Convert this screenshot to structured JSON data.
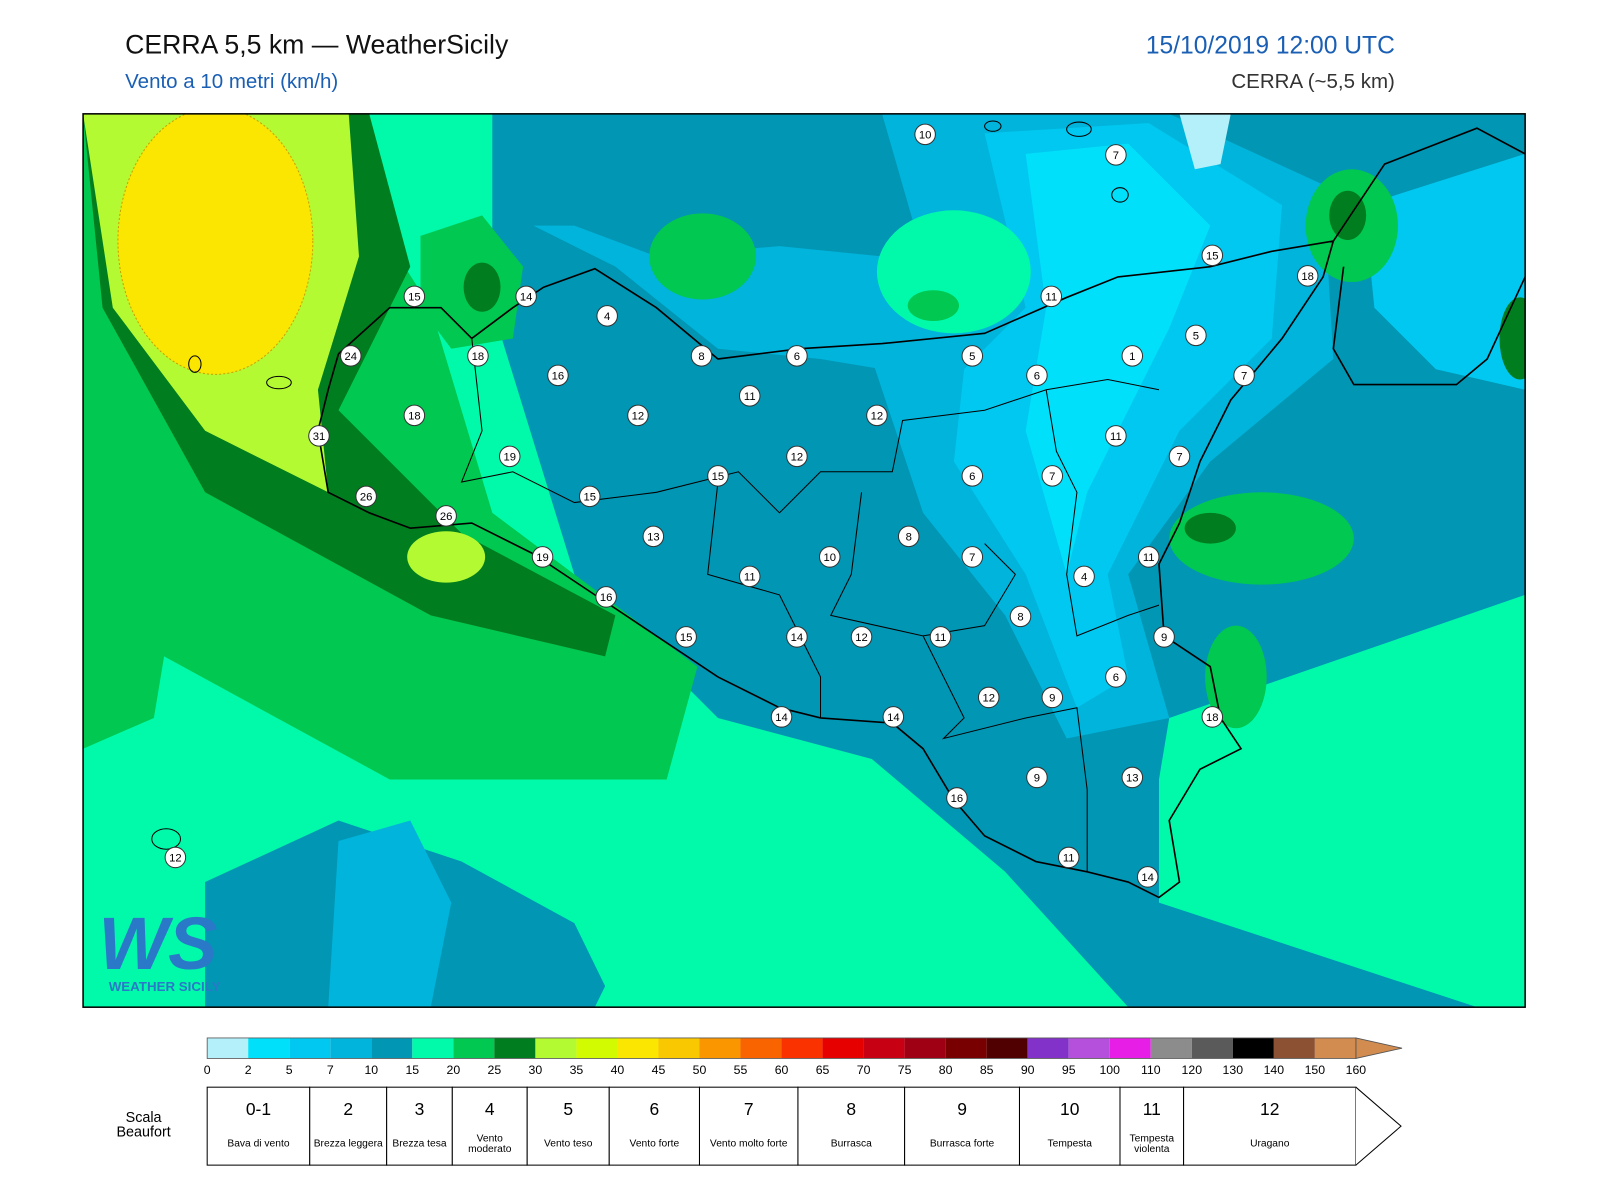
{
  "header": {
    "title": "CERRA 5,5 km — WeatherSicily",
    "subtitle": "Vento a 10 metri (km/h)",
    "datetime": "15/10/2019 12:00 UTC",
    "model": "CERRA (~5,5 km)"
  },
  "stations": [
    10,
    7,
    15,
    18,
    15,
    14,
    11,
    4,
    5,
    24,
    18,
    8,
    6,
    5,
    1,
    16,
    6,
    7,
    11,
    18,
    12,
    12,
    31,
    11,
    12,
    19,
    7,
    15,
    6,
    7,
    26,
    15,
    26,
    13,
    8,
    19,
    10,
    7,
    11,
    11,
    4,
    16,
    8,
    15,
    14,
    12,
    11,
    9,
    6,
    12,
    9,
    14,
    14,
    18,
    9,
    13,
    16,
    12,
    11,
    14
  ],
  "scale": {
    "ticks": [
      0,
      2,
      5,
      7,
      10,
      15,
      20,
      25,
      30,
      35,
      40,
      45,
      50,
      55,
      60,
      65,
      70,
      75,
      80,
      85,
      90,
      95,
      100,
      110,
      120,
      130,
      140,
      150,
      160
    ],
    "colors": [
      "#b4f0fa",
      "#00e0fa",
      "#00c8f0",
      "#00b4dc",
      "#0096b4",
      "#00faaa",
      "#00c850",
      "#007d1e",
      "#b4fa32",
      "#d2fa00",
      "#fae600",
      "#fac800",
      "#fa9600",
      "#fa6400",
      "#fa3200",
      "#e60000",
      "#c80014",
      "#a00014",
      "#780000",
      "#500000",
      "#8232c8",
      "#b450dc",
      "#e61ee6",
      "#8c8c8c",
      "#5a5a5a",
      "#000000",
      "#8c5032",
      "#d28c50"
    ]
  },
  "beaufort": {
    "label": "Scala Beaufort",
    "levels": [
      {
        "force": "0-1",
        "name": "Bava di vento"
      },
      {
        "force": "2",
        "name": "Brezza leggera"
      },
      {
        "force": "3",
        "name": "Brezza tesa"
      },
      {
        "force": "4",
        "name": "Vento moderato"
      },
      {
        "force": "5",
        "name": "Vento teso"
      },
      {
        "force": "6",
        "name": "Vento forte"
      },
      {
        "force": "7",
        "name": "Vento molto forte"
      },
      {
        "force": "8",
        "name": "Burrasca"
      },
      {
        "force": "9",
        "name": "Burrasca forte"
      },
      {
        "force": "10",
        "name": "Tempesta"
      },
      {
        "force": "11",
        "name": "Tempesta violenta"
      },
      {
        "force": "12",
        "name": "Uragano"
      }
    ]
  },
  "logo": {
    "mark": "WS",
    "name": "WEATHER SICILY"
  }
}
